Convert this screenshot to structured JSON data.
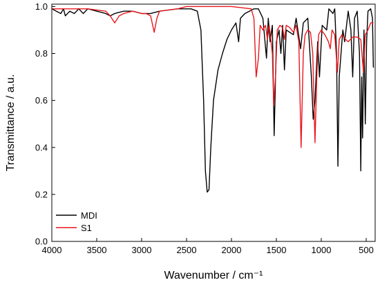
{
  "chart_data": {
    "type": "line",
    "xlabel": "Wavenumber / cm⁻¹",
    "ylabel": "Transmittance / a.u.",
    "xlim": [
      4000,
      400
    ],
    "ylim": [
      0,
      1.01
    ],
    "xticks": [
      4000,
      3500,
      3000,
      2500,
      2000,
      1500,
      1000,
      500
    ],
    "yticks": [
      {
        "value": 0,
        "label": "0.0"
      },
      {
        "value": 0.2,
        "label": "0.2"
      },
      {
        "value": 0.4,
        "label": "0.4"
      },
      {
        "value": 0.6,
        "label": "0.6"
      },
      {
        "value": 0.8,
        "label": "0.8"
      },
      {
        "value": 1,
        "label": "1.0"
      }
    ],
    "legend": "lower left",
    "series": [
      {
        "name": "MDI",
        "color": "#000000",
        "x": [
          4000,
          3950,
          3900,
          3870,
          3850,
          3800,
          3750,
          3700,
          3650,
          3600,
          3500,
          3400,
          3350,
          3300,
          3200,
          3100,
          3000,
          2900,
          2800,
          2600,
          2450,
          2380,
          2340,
          2310,
          2290,
          2270,
          2250,
          2230,
          2200,
          2150,
          2100,
          2050,
          2000,
          1950,
          1920,
          1900,
          1850,
          1800,
          1750,
          1700,
          1650,
          1610,
          1590,
          1570,
          1545,
          1525,
          1500,
          1470,
          1450,
          1430,
          1410,
          1390,
          1310,
          1280,
          1230,
          1200,
          1150,
          1110,
          1090,
          1070,
          1040,
          1020,
          990,
          940,
          915,
          870,
          850,
          830,
          815,
          800,
          780,
          760,
          740,
          700,
          670,
          650,
          630,
          600,
          575,
          560,
          550,
          540,
          525,
          510,
          495,
          480,
          450,
          430,
          420
        ],
        "values": [
          0.99,
          0.98,
          0.97,
          0.99,
          0.96,
          0.98,
          0.97,
          0.99,
          0.97,
          0.99,
          0.98,
          0.97,
          0.96,
          0.97,
          0.98,
          0.98,
          0.97,
          0.97,
          0.98,
          0.99,
          0.99,
          0.98,
          0.9,
          0.6,
          0.3,
          0.21,
          0.22,
          0.4,
          0.6,
          0.73,
          0.8,
          0.86,
          0.9,
          0.93,
          0.85,
          0.95,
          0.97,
          0.98,
          0.99,
          0.99,
          0.95,
          0.78,
          0.95,
          0.85,
          0.92,
          0.45,
          0.85,
          0.9,
          0.8,
          0.92,
          0.73,
          0.9,
          0.88,
          0.95,
          0.82,
          0.93,
          0.95,
          0.7,
          0.52,
          0.6,
          0.85,
          0.7,
          0.92,
          0.9,
          0.99,
          0.97,
          0.99,
          0.8,
          0.32,
          0.7,
          0.8,
          0.9,
          0.85,
          0.98,
          0.9,
          0.7,
          0.95,
          0.98,
          0.8,
          0.3,
          0.7,
          0.44,
          0.9,
          0.5,
          0.85,
          0.98,
          0.99,
          0.95,
          0.74
        ]
      },
      {
        "name": "S1",
        "color": "#e8171c",
        "x": [
          4000,
          3600,
          3400,
          3350,
          3300,
          3250,
          3200,
          3100,
          3000,
          2950,
          2900,
          2860,
          2830,
          2800,
          2600,
          2500,
          2000,
          1780,
          1750,
          1725,
          1700,
          1680,
          1650,
          1620,
          1600,
          1580,
          1545,
          1530,
          1510,
          1490,
          1460,
          1430,
          1410,
          1390,
          1350,
          1310,
          1280,
          1250,
          1225,
          1200,
          1180,
          1150,
          1120,
          1095,
          1070,
          1050,
          1030,
          1000,
          960,
          920,
          900,
          880,
          850,
          820,
          800,
          770,
          730,
          700,
          650,
          600,
          560,
          530,
          510,
          480,
          450,
          420
        ],
        "values": [
          0.99,
          0.99,
          0.98,
          0.96,
          0.93,
          0.96,
          0.97,
          0.98,
          0.97,
          0.97,
          0.96,
          0.89,
          0.95,
          0.98,
          0.99,
          1.0,
          1.0,
          0.99,
          0.95,
          0.7,
          0.78,
          0.92,
          0.9,
          0.92,
          0.86,
          0.92,
          0.8,
          0.58,
          0.7,
          0.9,
          0.92,
          0.91,
          0.86,
          0.92,
          0.91,
          0.89,
          0.92,
          0.85,
          0.4,
          0.8,
          0.88,
          0.9,
          0.89,
          0.8,
          0.42,
          0.7,
          0.88,
          0.9,
          0.88,
          0.85,
          0.82,
          0.9,
          0.88,
          0.72,
          0.86,
          0.88,
          0.86,
          0.85,
          0.87,
          0.87,
          0.86,
          0.72,
          0.88,
          0.9,
          0.93,
          0.93
        ]
      }
    ]
  }
}
